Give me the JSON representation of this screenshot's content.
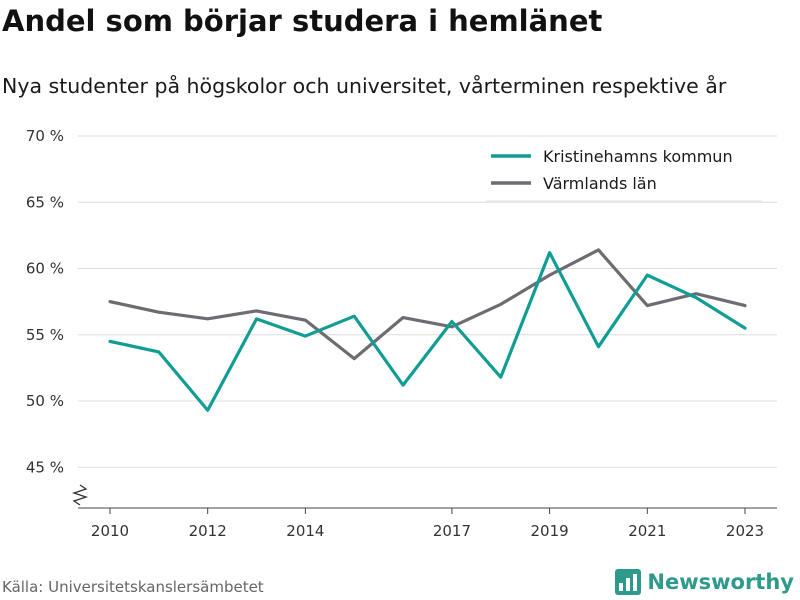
{
  "header": {
    "title": "Andel som börjar studera i hemlänet",
    "subtitle": "Nya studenter på högskolor och universitet, vårterminen respektive år"
  },
  "footer": {
    "source": "Källa: Universitetskanslersämbetet",
    "brand_name": "Newsworthy",
    "brand_icon": "bar-chart-logo-icon"
  },
  "colors": {
    "kristinehamn": "#0f9d94",
    "varmland": "#6e6c72",
    "grid": "#dddddd",
    "axis": "#444444",
    "brand": "#2d9a8c"
  },
  "chart_data": {
    "type": "line",
    "title": "Andel som börjar studera i hemlänet",
    "subtitle": "Nya studenter på högskolor och universitet, vårterminen respektive år",
    "xlabel": "",
    "ylabel": "",
    "x": [
      2010,
      2011,
      2012,
      2013,
      2014,
      2015,
      2016,
      2017,
      2018,
      2019,
      2020,
      2021,
      2022,
      2023
    ],
    "xticks": [
      2010,
      2012,
      2014,
      2017,
      2019,
      2021,
      2023
    ],
    "xtick_labels": [
      "2010",
      "2012",
      "2014",
      "2017",
      "2019",
      "2021",
      "2023"
    ],
    "yticks": [
      45,
      50,
      55,
      60,
      65,
      70
    ],
    "ytick_labels": [
      "45 %",
      "50 %",
      "55 %",
      "60 %",
      "65 %",
      "70 %"
    ],
    "ylim": [
      42,
      70
    ],
    "y_axis_break": true,
    "grid": true,
    "legend_position": "top-right",
    "series": [
      {
        "name": "Kristinehamns kommun",
        "color": "#0f9d94",
        "values": [
          54.5,
          53.7,
          49.3,
          56.2,
          54.9,
          56.4,
          51.2,
          56.0,
          51.8,
          61.2,
          54.1,
          59.5,
          57.8,
          55.5
        ]
      },
      {
        "name": "Värmlands län",
        "color": "#6e6c72",
        "values": [
          57.5,
          56.7,
          56.2,
          56.8,
          56.1,
          53.2,
          56.3,
          55.6,
          57.3,
          59.5,
          61.4,
          57.2,
          58.1,
          57.2
        ]
      }
    ]
  }
}
